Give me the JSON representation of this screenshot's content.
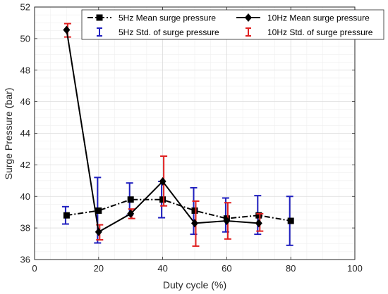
{
  "chart_data": {
    "type": "line",
    "xlabel": "Duty cycle (%)",
    "ylabel": "Surge Pressure (bar)",
    "xlim": [
      0,
      100
    ],
    "ylim": [
      36,
      52
    ],
    "xticks": [
      "0",
      "20",
      "40",
      "60",
      "80",
      "100"
    ],
    "yticks": [
      "36",
      "38",
      "40",
      "42",
      "44",
      "46",
      "48",
      "50",
      "52"
    ],
    "grid": true,
    "minor_grid": true,
    "legend_position": "top",
    "series": [
      {
        "name": "5Hz Mean surge pressure",
        "error_name": "5Hz Std. of surge pressure",
        "line_style": "dash-dot",
        "marker": "square",
        "color": "#000000",
        "error_color": "#1f1fbf",
        "x": [
          10,
          20,
          30,
          40,
          50,
          60,
          70,
          80
        ],
        "y": [
          38.8,
          39.1,
          39.8,
          39.8,
          39.1,
          38.6,
          38.8,
          38.45
        ],
        "err_low": [
          38.25,
          37.05,
          38.8,
          38.65,
          37.6,
          37.75,
          37.6,
          36.9
        ],
        "err_high": [
          39.35,
          41.2,
          40.85,
          40.95,
          40.55,
          39.9,
          40.05,
          40.0
        ]
      },
      {
        "name": "10Hz Mean surge pressure",
        "error_name": "10Hz Std. of surge pressure",
        "line_style": "solid",
        "marker": "diamond",
        "color": "#000000",
        "error_color": "#e01f1f",
        "x": [
          10,
          20,
          30,
          40,
          50,
          60,
          70
        ],
        "y": [
          50.55,
          37.75,
          38.9,
          40.95,
          38.3,
          38.45,
          38.3
        ],
        "err_low": [
          50.1,
          37.25,
          38.6,
          39.4,
          36.85,
          37.3,
          37.8
        ],
        "err_high": [
          50.95,
          38.2,
          39.2,
          42.55,
          39.7,
          39.6,
          38.9
        ]
      }
    ]
  }
}
